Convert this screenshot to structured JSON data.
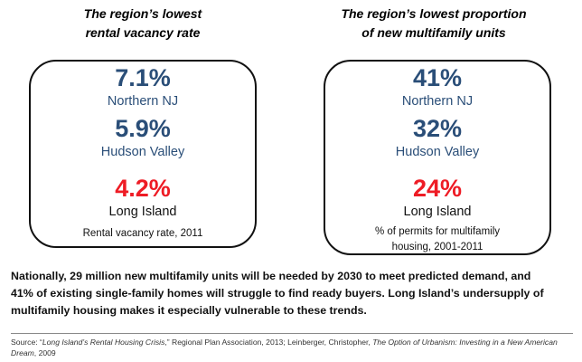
{
  "left_panel": {
    "heading_line1": "The region’s lowest",
    "heading_line2": "rental vacancy rate",
    "stats": [
      {
        "value": "7.1%",
        "region": "Northern NJ"
      },
      {
        "value": "5.9%",
        "region": "Hudson Valley"
      },
      {
        "value": "4.2%",
        "region": "Long Island"
      }
    ],
    "caption_line1": "Rental vacancy rate, 2011"
  },
  "right_panel": {
    "heading_line1": "The region’s lowest proportion",
    "heading_line2": "of new multifamily units",
    "stats": [
      {
        "value": "41%",
        "region": "Northern NJ"
      },
      {
        "value": "32%",
        "region": "Hudson Valley"
      },
      {
        "value": "24%",
        "region": "Long Island"
      }
    ],
    "caption_line1": "% of permits for multifamily",
    "caption_line2": "housing, 2001-2011"
  },
  "summary": {
    "line1": "Nationally, 29 million new multifamily units will be needed by 2030 to meet predicted demand, and",
    "line2": "41% of existing single-family homes will struggle to find ready buyers. Long Island’s undersupply of",
    "line3": "multifamily housing makes it especially vulnerable to these trends."
  },
  "source": {
    "prefix": "Source: “",
    "title1": "Long Island’s Rental Housing Crisis",
    "middle": ",” Regional Plan Association, 2013; Leinberger, Christopher, ",
    "title2": "The Option of Urbanism: Investing in a New American Dream",
    "suffix": ", 2009"
  },
  "colors": {
    "value_blue": "#2a4e78",
    "highlight_red": "#ee1c25",
    "border": "#111111"
  }
}
